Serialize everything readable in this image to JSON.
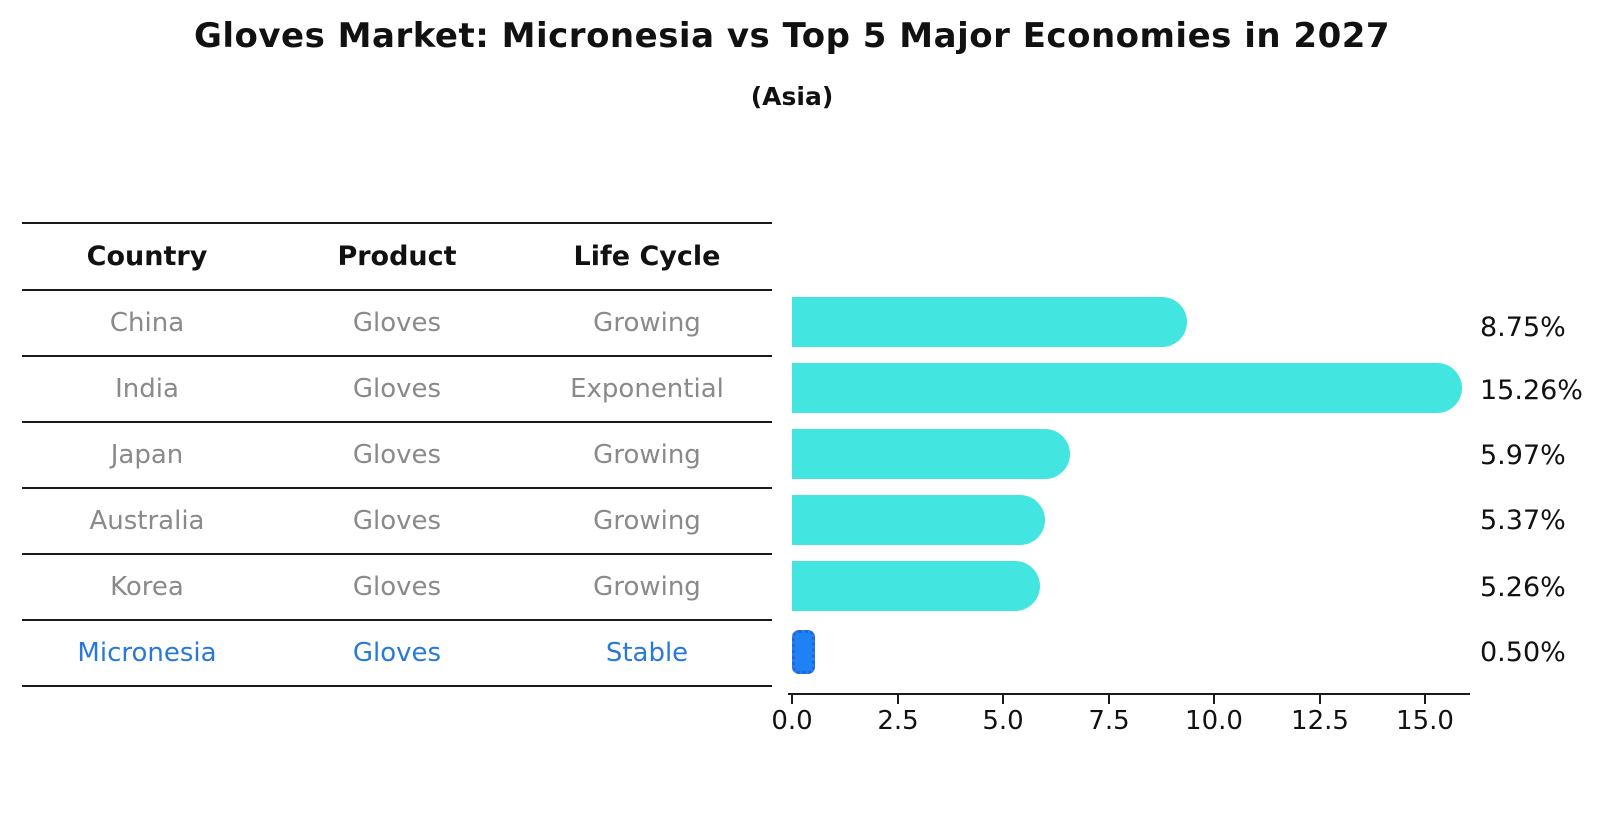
{
  "title": "Gloves Market: Micronesia vs Top 5 Major Economies in 2027",
  "subtitle": "(Asia)",
  "table": {
    "headers": [
      "Country",
      "Product",
      "Life Cycle"
    ],
    "rows": [
      {
        "country": "China",
        "product": "Gloves",
        "life_cycle": "Growing",
        "highlighted": false
      },
      {
        "country": "India",
        "product": "Gloves",
        "life_cycle": "Exponential",
        "highlighted": false
      },
      {
        "country": "Japan",
        "product": "Gloves",
        "life_cycle": "Growing",
        "highlighted": false
      },
      {
        "country": "Australia",
        "product": "Gloves",
        "life_cycle": "Growing",
        "highlighted": false
      },
      {
        "country": "Korea",
        "product": "Gloves",
        "life_cycle": "Growing",
        "highlighted": false
      },
      {
        "country": "Micronesia",
        "product": "Gloves",
        "life_cycle": "Stable",
        "highlighted": true
      }
    ]
  },
  "chart_data": {
    "type": "bar",
    "orientation": "horizontal",
    "title": "Gloves Market: Micronesia vs Top 5 Major Economies in 2027",
    "subtitle": "(Asia)",
    "categories": [
      "China",
      "India",
      "Japan",
      "Australia",
      "Korea",
      "Micronesia"
    ],
    "values": [
      8.75,
      15.26,
      5.97,
      5.37,
      5.26,
      0.5
    ],
    "value_labels": [
      "8.75%",
      "15.26%",
      "5.97%",
      "5.37%",
      "5.26%",
      "0.50%"
    ],
    "highlight_index": 5,
    "xlim": [
      0,
      16.1
    ],
    "x_ticks": [
      0.0,
      2.5,
      5.0,
      7.5,
      10.0,
      12.5,
      15.0
    ],
    "x_tick_labels": [
      "0.0",
      "2.5",
      "5.0",
      "7.5",
      "10.0",
      "12.5",
      "15.0"
    ],
    "xlabel": "",
    "ylabel": "",
    "grid": false,
    "legend": false,
    "colors": {
      "bar": "#42e5e0",
      "highlight_bar": "#1e82f5",
      "highlight_bar_border": "#2a62d9",
      "highlight_text": "#2979d8",
      "row_text": "#8a8a8a",
      "header_text": "#111111",
      "axis": "#1a1a1a"
    }
  }
}
